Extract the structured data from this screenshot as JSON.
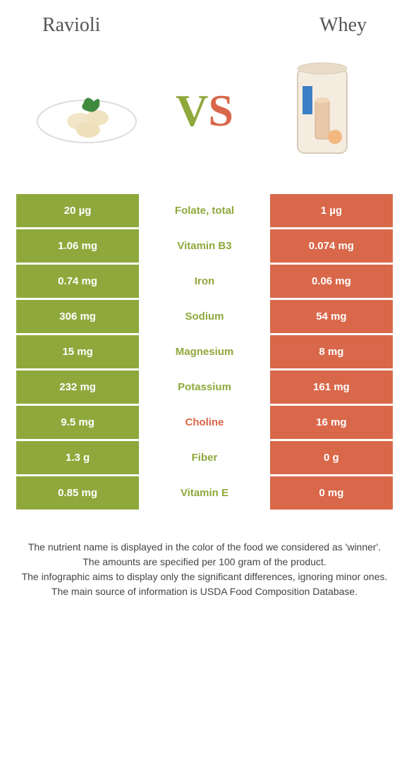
{
  "foods": {
    "left": {
      "name": "Ravioli",
      "color": "#8fa83c"
    },
    "right": {
      "name": "Whey",
      "color": "#d9684a"
    }
  },
  "vs_label": {
    "v": "V",
    "s": "S"
  },
  "table": {
    "type": "table",
    "left_bg": "#8fa83c",
    "right_bg": "#d9684a",
    "left_text": "#ffffff",
    "right_text": "#ffffff",
    "mid_bg": "#ffffff",
    "rows": [
      {
        "left": "20 µg",
        "name": "Folate, total",
        "right": "1 µg",
        "winner": "left"
      },
      {
        "left": "1.06 mg",
        "name": "Vitamin B3",
        "right": "0.074 mg",
        "winner": "left"
      },
      {
        "left": "0.74 mg",
        "name": "Iron",
        "right": "0.06 mg",
        "winner": "left"
      },
      {
        "left": "306 mg",
        "name": "Sodium",
        "right": "54 mg",
        "winner": "left"
      },
      {
        "left": "15 mg",
        "name": "Magnesium",
        "right": "8 mg",
        "winner": "left"
      },
      {
        "left": "232 mg",
        "name": "Potassium",
        "right": "161 mg",
        "winner": "left"
      },
      {
        "left": "9.5 mg",
        "name": "Choline",
        "right": "16 mg",
        "winner": "right"
      },
      {
        "left": "1.3 g",
        "name": "Fiber",
        "right": "0 g",
        "winner": "left"
      },
      {
        "left": "0.85 mg",
        "name": "Vitamin E",
        "right": "0 mg",
        "winner": "left"
      }
    ]
  },
  "footer": {
    "line1": "The nutrient name is displayed in the color of the food we considered as 'winner'.",
    "line2": "The amounts are specified per 100 gram of the product.",
    "line3": "The infographic aims to display only the significant differences, ignoring minor ones.",
    "line4": "The main source of information is USDA Food Composition Database."
  }
}
